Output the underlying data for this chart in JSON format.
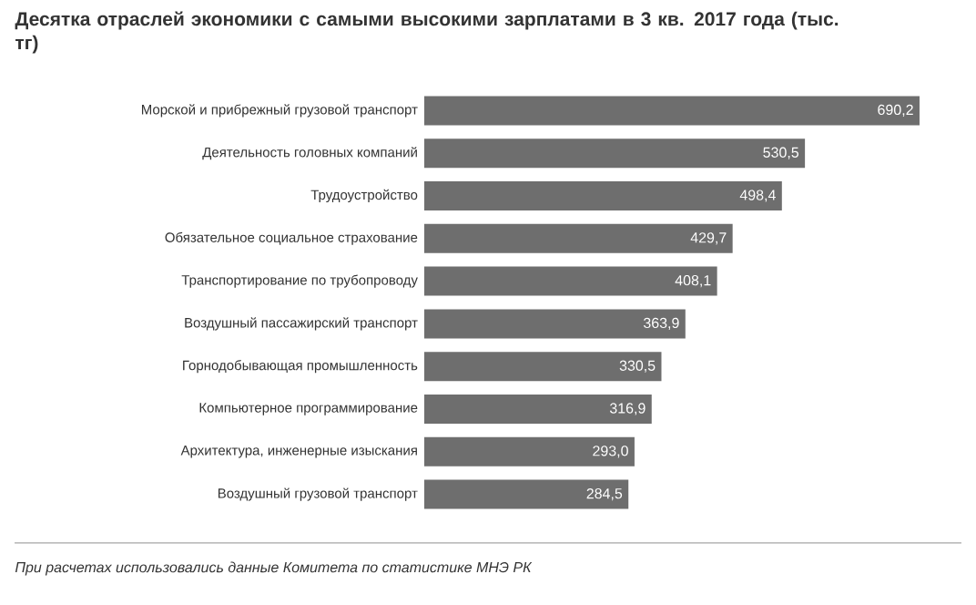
{
  "chart_data": {
    "type": "bar",
    "orientation": "horizontal",
    "title": "Десятка отраслей экономики с самыми высокими зарплатами в 3 кв. 2017 года (тыс. тг)",
    "categories": [
      "Морской и прибрежный грузовой транспорт",
      "Деятельность головных компаний",
      "Трудоустройство",
      "Обязательное социальное страхование",
      "Транспортирование по трубопроводу",
      "Воздушный пассажирский транспорт",
      "Горнодобывающая промышленность",
      "Компьютерное программирование",
      "Архитектура, инженерные изыскания",
      "Воздушный грузовой транспорт"
    ],
    "values": [
      690.2,
      530.5,
      498.4,
      429.7,
      408.1,
      363.9,
      330.5,
      316.9,
      293.0,
      284.5
    ],
    "value_labels": [
      "690,2",
      "530,5",
      "498,4",
      "429,7",
      "408,1",
      "363,9",
      "330,5",
      "316,9",
      "293,0",
      "284,5"
    ],
    "color": "#6e6e6e",
    "annotations": [
      "При расчетах использовались данные Комитета по статистике МНЭ РК"
    ]
  }
}
